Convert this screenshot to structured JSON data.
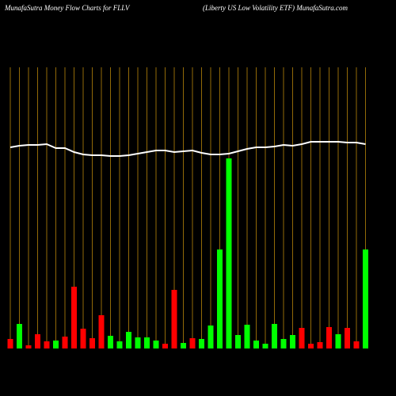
{
  "chart_data": {
    "type": "bar",
    "title": "MunafaSutra  Money Flow  Charts for FLLV",
    "subtitle": "(Liberty US Low  Volatility ETF) MunafaSutra.com",
    "values": [
      12,
      31,
      4,
      18,
      9,
      10,
      15,
      78,
      25,
      13,
      42,
      16,
      9,
      21,
      14,
      14,
      10,
      6,
      74,
      7,
      13,
      12,
      29,
      125,
      240,
      17,
      30,
      10,
      6,
      31,
      12,
      17,
      26,
      6,
      8,
      27,
      18,
      26,
      9,
      125
    ],
    "colors": [
      "#ff0000",
      "#00ff00",
      "#ff0000",
      "#ff0000",
      "#ff0000",
      "#00ff00",
      "#ff0000",
      "#ff0000",
      "#ff0000",
      "#ff0000",
      "#ff0000",
      "#00ff00",
      "#00ff00",
      "#00ff00",
      "#00ff00",
      "#00ff00",
      "#00ff00",
      "#ff0000",
      "#ff0000",
      "#00ff00",
      "#ff0000",
      "#00ff00",
      "#00ff00",
      "#00ff00",
      "#00ff00",
      "#00ff00",
      "#00ff00",
      "#00ff00",
      "#00ff00",
      "#00ff00",
      "#00ff00",
      "#00ff00",
      "#ff0000",
      "#ff0000",
      "#ff0000",
      "#ff0000",
      "#00ff00",
      "#ff0000",
      "#ff0000",
      "#00ff00"
    ],
    "price": [
      254,
      256,
      257,
      257,
      258,
      253,
      253,
      248,
      245,
      244,
      244,
      243,
      243,
      244,
      246,
      248,
      250,
      250,
      248,
      249,
      250,
      247,
      245,
      245,
      246,
      249,
      252,
      254,
      254,
      255,
      257,
      256,
      258,
      261,
      261,
      261,
      261,
      260,
      260,
      258
    ],
    "price_color": "#ffffff",
    "ylim": [
      0,
      355
    ]
  }
}
